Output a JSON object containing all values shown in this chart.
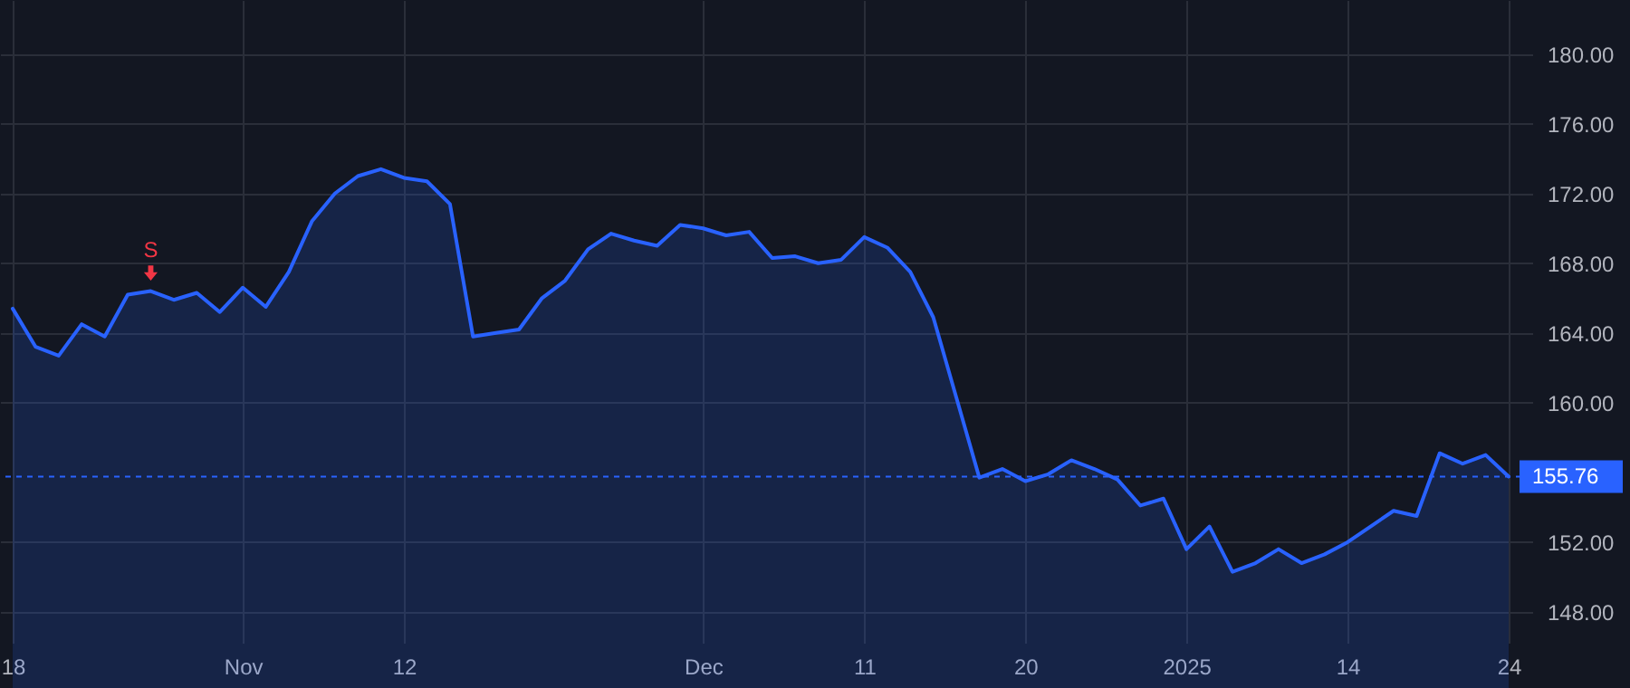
{
  "chart_data": {
    "type": "area",
    "categories": [
      "18",
      null,
      null,
      null,
      null,
      null,
      null,
      null,
      null,
      null,
      "Nov",
      null,
      null,
      null,
      null,
      null,
      null,
      "12",
      null,
      null,
      null,
      null,
      null,
      null,
      null,
      null,
      null,
      null,
      null,
      null,
      "Dec",
      null,
      null,
      null,
      null,
      null,
      null,
      "11",
      null,
      null,
      null,
      null,
      null,
      null,
      "20",
      null,
      null,
      null,
      null,
      null,
      null,
      "2025",
      null,
      null,
      null,
      null,
      null,
      null,
      "14",
      null,
      null,
      null,
      null,
      null,
      null,
      "24"
    ],
    "series": [
      {
        "color": "#2962ff",
        "values": [
          165.4,
          163.2,
          162.7,
          164.5,
          163.8,
          166.2,
          166.4,
          165.9,
          166.3,
          165.2,
          166.6,
          165.5,
          167.5,
          170.4,
          172.0,
          173.0,
          173.4,
          172.9,
          172.7,
          171.4,
          163.8,
          164.0,
          164.2,
          166.0,
          167.0,
          168.8,
          169.7,
          169.3,
          169.0,
          170.2,
          170.0,
          169.6,
          169.8,
          168.3,
          168.4,
          168.0,
          168.2,
          169.5,
          168.9,
          167.5,
          164.9,
          160.3,
          155.7,
          156.2,
          155.5,
          155.9,
          156.7,
          156.2,
          155.6,
          154.1,
          154.5,
          151.6,
          152.9,
          150.3,
          150.8,
          151.6,
          150.8,
          151.3,
          152.0,
          152.9,
          153.8,
          153.5,
          157.1,
          156.5,
          157.0,
          155.76
        ]
      }
    ],
    "ylim": [
      146.75,
      183.1
    ],
    "yticks": [
      {
        "value": 148,
        "label": "148.00"
      },
      {
        "value": 152,
        "label": "152.00"
      },
      {
        "value": 160,
        "label": "160.00"
      },
      {
        "value": 164,
        "label": "164.00"
      },
      {
        "value": 168,
        "label": "168.00"
      },
      {
        "value": 172,
        "label": "172.00"
      },
      {
        "value": 176,
        "label": "176.00"
      },
      {
        "value": 180,
        "label": "180.00"
      }
    ],
    "ref_lines": [
      {
        "axis": "y",
        "value": 155.76,
        "label": "155.76",
        "color": "#2962ff",
        "line_style": "dashed"
      }
    ],
    "annotations": [
      {
        "text": "S",
        "y": 166.4
      }
    ],
    "grid": true
  }
}
